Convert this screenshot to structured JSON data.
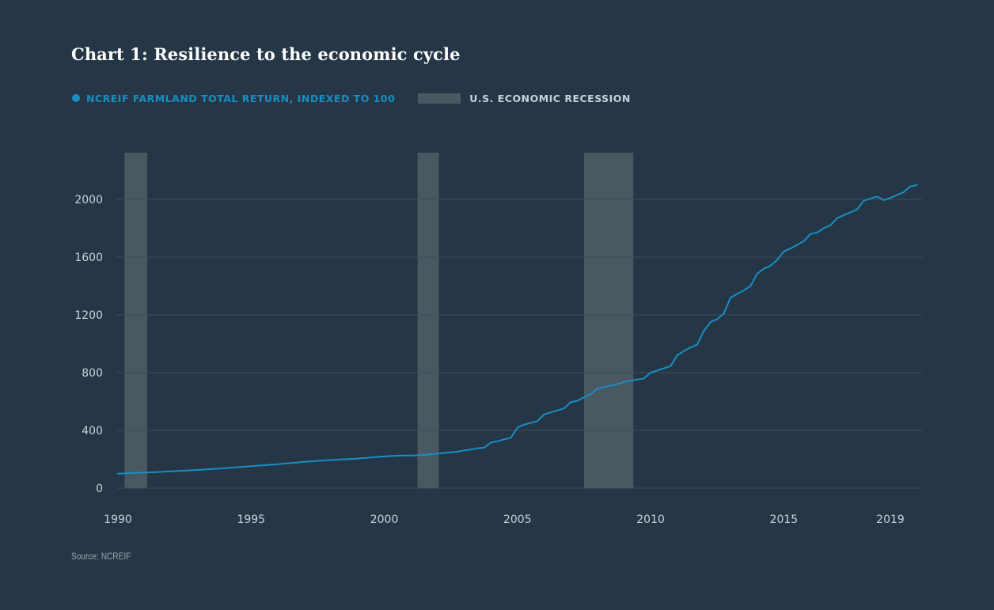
{
  "colors": {
    "background": "#253746",
    "line": "#1a8dc4",
    "recession": "#4a5862",
    "grid": "#3d4d5b",
    "tick_text": "#c9d1d8",
    "title": "#ffffff",
    "recession_legend_text": "#c9d1d8"
  },
  "chart_data": {
    "type": "line",
    "title": "Chart 1: Resilience to the economic cycle",
    "source": "Source: NCREIF",
    "legend": [
      {
        "label": "NCREIF FARMLAND TOTAL RETURN, INDEXED TO 100",
        "marker": "dot"
      },
      {
        "label": "U.S. ECONOMIC RECESSION",
        "marker": "band"
      }
    ],
    "legend_placement": "top-left",
    "xlim": [
      1990,
      2020.1
    ],
    "ylim": [
      0,
      2000
    ],
    "x_ticks": [
      1990,
      1995,
      2000,
      2005,
      2010,
      2015,
      2019
    ],
    "y_ticks": [
      0,
      400,
      800,
      1200,
      1600,
      2000
    ],
    "grid": true,
    "recessions": [
      [
        1990.25,
        1991.1
      ],
      [
        2001.25,
        2002.05
      ],
      [
        2007.5,
        2009.35
      ]
    ],
    "series": [
      {
        "name": "NCREIF FARMLAND TOTAL RETURN, INDEXED TO 100",
        "x": [
          1990.0,
          1990.5,
          1991.0,
          1991.5,
          1992.0,
          1992.5,
          1993.0,
          1993.5,
          1994.0,
          1994.5,
          1995.0,
          1995.5,
          1996.0,
          1996.5,
          1997.0,
          1997.5,
          1998.0,
          1998.5,
          1999.0,
          1999.5,
          2000.0,
          2000.5,
          2001.0,
          2001.5,
          2002.0,
          2002.5,
          2002.75,
          2003.0,
          2003.25,
          2003.5,
          2003.75,
          2004.0,
          2004.25,
          2004.5,
          2004.75,
          2005.0,
          2005.25,
          2005.5,
          2005.75,
          2006.0,
          2006.25,
          2006.5,
          2006.75,
          2007.0,
          2007.25,
          2007.5,
          2007.75,
          2008.0,
          2008.25,
          2008.5,
          2008.75,
          2009.0,
          2009.25,
          2009.5,
          2009.75,
          2010.0,
          2010.25,
          2010.5,
          2010.75,
          2011.0,
          2011.25,
          2011.5,
          2011.75,
          2012.0,
          2012.25,
          2012.5,
          2012.75,
          2013.0,
          2013.25,
          2013.5,
          2013.75,
          2014.0,
          2014.25,
          2014.5,
          2014.75,
          2015.0,
          2015.25,
          2015.5,
          2015.75,
          2016.0,
          2016.25,
          2016.5,
          2016.75,
          2017.0,
          2017.25,
          2017.5,
          2017.75,
          2018.0,
          2018.25,
          2018.5,
          2018.75,
          2019.0,
          2019.25,
          2019.5,
          2019.75,
          2020.0
        ],
        "values": [
          100,
          104,
          108,
          112,
          116,
          121,
          126,
          132,
          138,
          145,
          152,
          159,
          166,
          174,
          182,
          189,
          195,
          200,
          205,
          212,
          220,
          225,
          225,
          230,
          240,
          248,
          252,
          262,
          268,
          276,
          280,
          315,
          325,
          338,
          348,
          420,
          440,
          452,
          465,
          510,
          525,
          538,
          553,
          595,
          605,
          630,
          650,
          690,
          700,
          710,
          720,
          735,
          745,
          752,
          760,
          800,
          815,
          830,
          845,
          920,
          950,
          975,
          995,
          1090,
          1150,
          1170,
          1210,
          1320,
          1345,
          1370,
          1400,
          1485,
          1520,
          1540,
          1580,
          1640,
          1660,
          1685,
          1710,
          1760,
          1770,
          1800,
          1820,
          1870,
          1890,
          1910,
          1930,
          1990,
          2005,
          2020,
          1995,
          2010,
          2030,
          2050,
          2090,
          2100
        ]
      }
    ]
  }
}
